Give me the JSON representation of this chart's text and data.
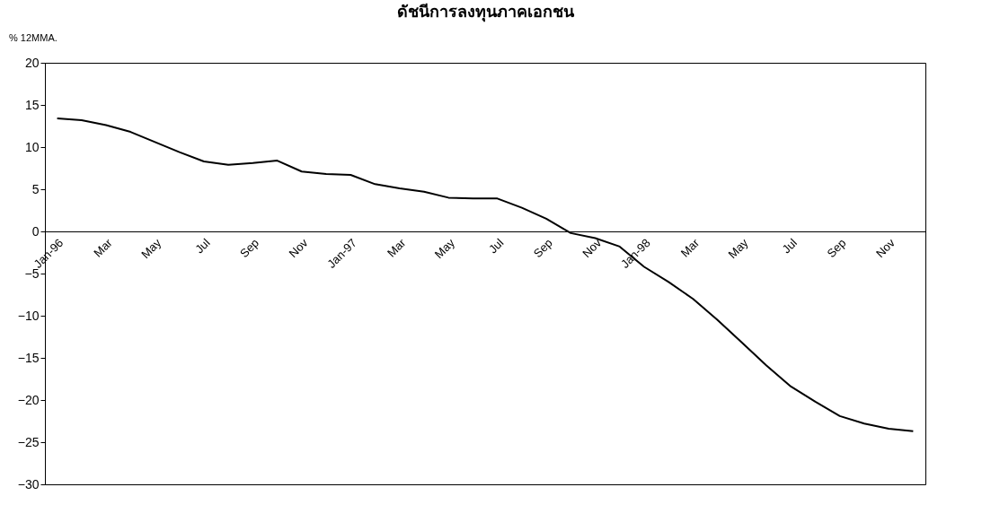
{
  "chart_data": {
    "type": "line",
    "title": "ดัชนีการลงทุนภาคเอกชน",
    "ylabel": "% 12MMA.",
    "categories": [
      "Jan-96",
      null,
      "Mar",
      null,
      "May",
      null,
      "Jul",
      null,
      "Sep",
      null,
      "Nov",
      null,
      "Jan-97",
      null,
      "Mar",
      null,
      "May",
      null,
      "Jul",
      null,
      "Sep",
      null,
      "Nov",
      null,
      "Jan-98",
      null,
      "Mar",
      null,
      "May",
      null,
      "Jul",
      null,
      "Sep",
      null,
      "Nov",
      null
    ],
    "series": [
      {
        "color": "#000000",
        "values": [
          13.4,
          13.2,
          12.6,
          11.8,
          10.6,
          9.4,
          8.3,
          7.9,
          8.1,
          8.4,
          7.1,
          6.8,
          6.7,
          5.6,
          5.1,
          4.7,
          4.0,
          3.9,
          3.9,
          2.8,
          1.5,
          -0.2,
          -0.8,
          -1.8,
          -4.2,
          -6.0,
          -8.0,
          -10.5,
          -13.2,
          -15.9,
          -18.4,
          -20.2,
          -21.9,
          -22.8,
          -23.4,
          -23.7
        ]
      }
    ],
    "ylim": [
      -30,
      20
    ],
    "yticks": [
      -30,
      -25,
      -20,
      -15,
      -10,
      -5,
      0,
      5,
      10,
      15,
      20
    ],
    "grid": false,
    "marker": "none",
    "line_style": "solid"
  }
}
